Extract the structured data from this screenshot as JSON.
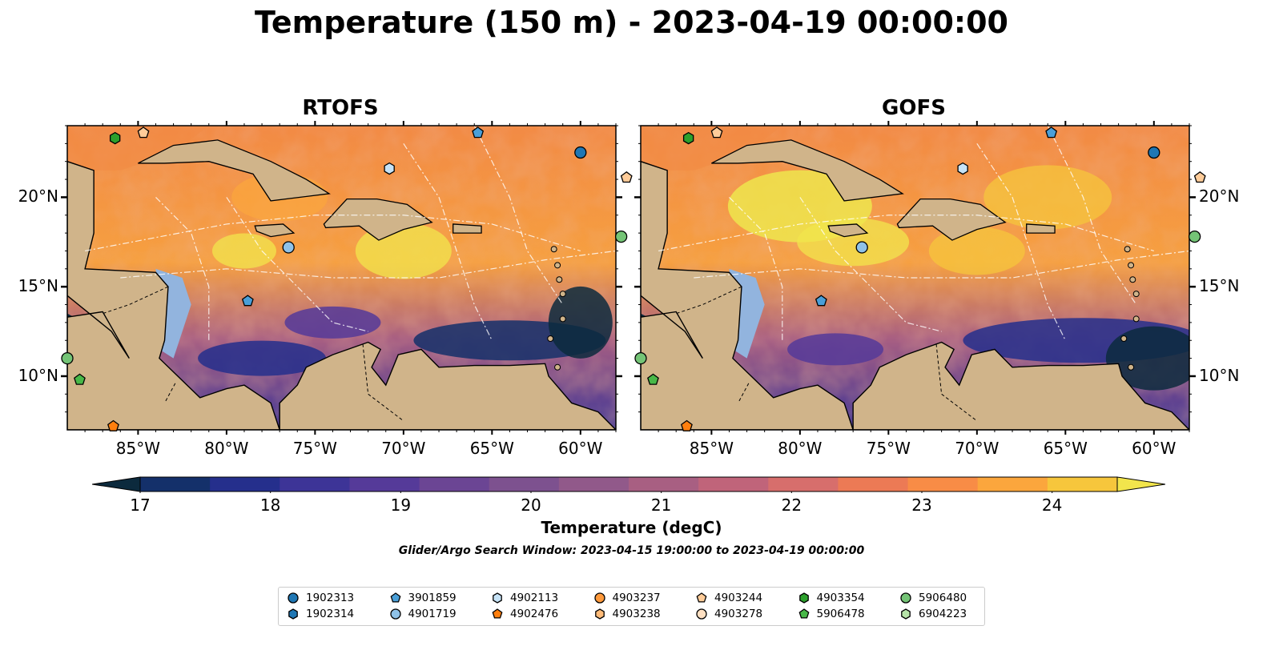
{
  "title": "Temperature (150 m) - 2023-04-19 00:00:00",
  "panels": [
    {
      "title": "RTOFS"
    },
    {
      "title": "GOFS"
    }
  ],
  "lat_labels": [
    "20°N",
    "15°N",
    "10°N"
  ],
  "lon_labels": [
    "85°W",
    "80°W",
    "75°W",
    "70°W",
    "65°W",
    "60°W"
  ],
  "colorbar": {
    "label": "Temperature (degC)",
    "ticks": [
      "17",
      "18",
      "19",
      "20",
      "21",
      "22",
      "23",
      "24"
    ],
    "range": [
      17,
      24.5
    ],
    "step": 0.5,
    "colors": [
      "#0c2a3d",
      "#14306a",
      "#252f8c",
      "#3d3497",
      "#553a99",
      "#6b4594",
      "#7d518f",
      "#91598a",
      "#a85f82",
      "#c0647a",
      "#d76e6c",
      "#ec7a55",
      "#f88c46",
      "#fba63d",
      "#f6c63c",
      "#f2e54c"
    ],
    "extend": "both"
  },
  "search_window": "Glider/Argo Search Window: 2023-04-15 19:00:00 to 2023-04-19 00:00:00",
  "legend": [
    {
      "id": "1902313",
      "marker": "circle",
      "color": "#1f77b4"
    },
    {
      "id": "1902314",
      "marker": "hexagon",
      "color": "#1f77b4"
    },
    {
      "id": "3901859",
      "marker": "pentagon",
      "color": "#4a9fd8"
    },
    {
      "id": "4901719",
      "marker": "circle",
      "color": "#8fc2e8"
    },
    {
      "id": "4902113",
      "marker": "hexagon",
      "color": "#c6e3f7"
    },
    {
      "id": "4902476",
      "marker": "pentagon",
      "color": "#ff7f0e"
    },
    {
      "id": "4903237",
      "marker": "circle",
      "color": "#ff9a3c"
    },
    {
      "id": "4903238",
      "marker": "hexagon",
      "color": "#ffbb78"
    },
    {
      "id": "4903244",
      "marker": "pentagon",
      "color": "#ffcc99"
    },
    {
      "id": "4903278",
      "marker": "circle",
      "color": "#ffe0c2"
    },
    {
      "id": "4903354",
      "marker": "hexagon",
      "color": "#2ca02c"
    },
    {
      "id": "5906478",
      "marker": "pentagon",
      "color": "#48b848"
    },
    {
      "id": "5906480",
      "marker": "circle",
      "color": "#74c476"
    },
    {
      "id": "6904223",
      "marker": "hexagon",
      "color": "#b7e4a9"
    }
  ]
}
